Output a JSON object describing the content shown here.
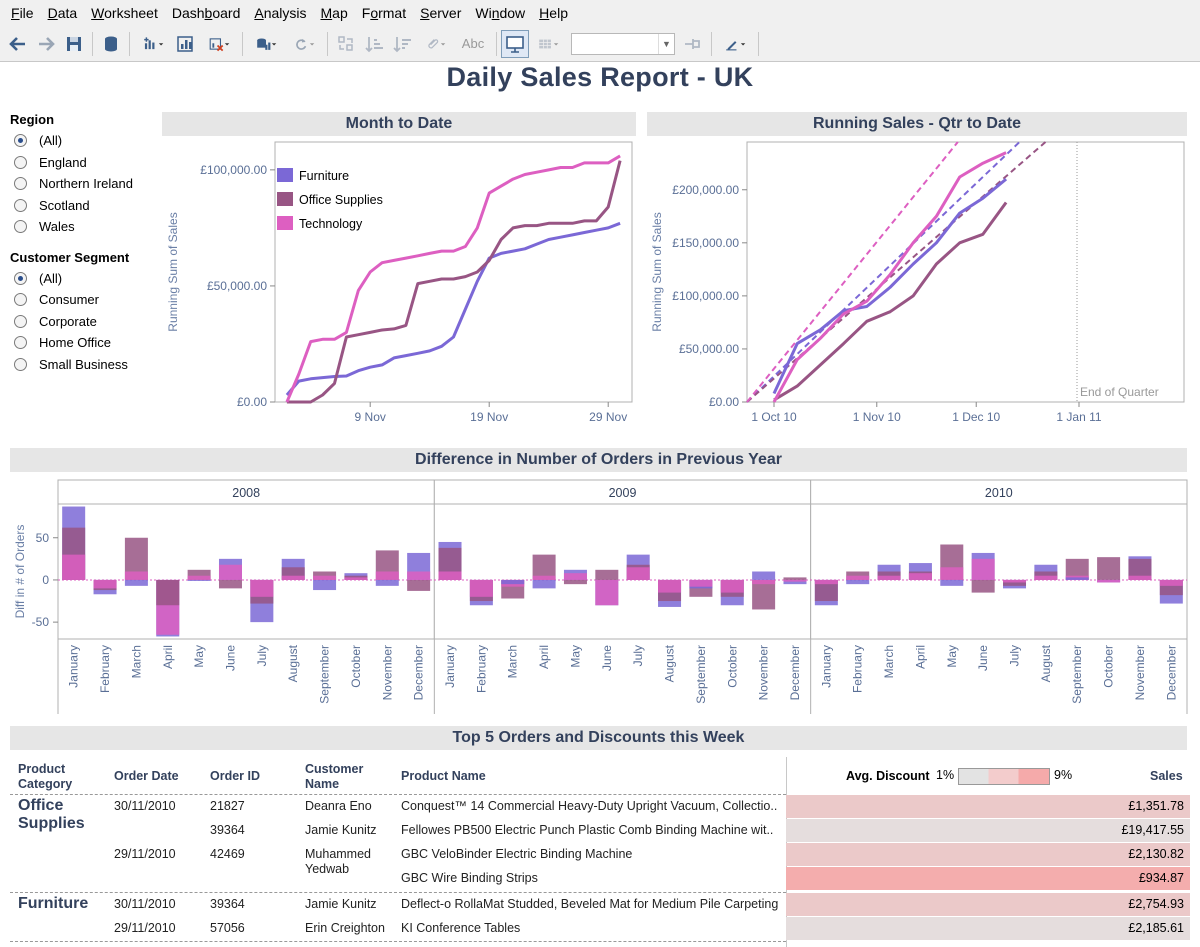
{
  "menu": [
    "File",
    "Data",
    "Worksheet",
    "Dashboard",
    "Analysis",
    "Map",
    "Format",
    "Server",
    "Window",
    "Help"
  ],
  "menu_underline": [
    "F",
    "D",
    "W",
    "b",
    "A",
    "M",
    "o",
    "S",
    "n",
    "H"
  ],
  "toolbar": {
    "icons": [
      "back-icon",
      "forward-icon",
      "save-icon",
      "datasource-icon",
      "new-worksheet-icon",
      "duplicate-icon",
      "clear-sheet-icon",
      "auto-update-icon",
      "refresh-icon",
      "swap-icon",
      "sort-ascending-icon",
      "sort-descending-icon",
      "group-icon",
      "show-labels-icon",
      "presentation-icon",
      "fit-icon",
      "fix-axes-icon",
      "highlight-icon"
    ],
    "labels_text": "Abc"
  },
  "title": "Daily Sales Report - UK",
  "filters": {
    "region": {
      "title": "Region",
      "options": [
        "(All)",
        "England",
        "Northern Ireland",
        "Scotland",
        "Wales"
      ],
      "selected": 0
    },
    "segment": {
      "title": "Customer Segment",
      "options": [
        "(All)",
        "Consumer",
        "Corporate",
        "Home Office",
        "Small Business"
      ],
      "selected": 0
    }
  },
  "colors": {
    "furniture": "#7b68d6",
    "office_supplies": "#985584",
    "technology": "#dd5fc1",
    "title": "#33415c",
    "header_bg": "#e6e6e6",
    "discount_low": "#e3e3e3",
    "discount_high": "#f5aaaa"
  },
  "chart_data": [
    {
      "type": "line",
      "title": "Month to Date",
      "ylabel": "Running Sum of Sales",
      "xlabel": "",
      "x_ticks": [
        "9 Nov",
        "19 Nov",
        "29 Nov"
      ],
      "y_ticks": [
        "£0.00",
        "£50,000.00",
        "£100,000.00"
      ],
      "ylim": [
        0,
        112000
      ],
      "legend": "top-left",
      "x": [
        2,
        3,
        4,
        5,
        6,
        7,
        8,
        9,
        10,
        11,
        12,
        13,
        14,
        15,
        16,
        17,
        18,
        19,
        20,
        21,
        22,
        23,
        24,
        25,
        26,
        27,
        28,
        29,
        30
      ],
      "series": [
        {
          "name": "Furniture",
          "values": [
            3000,
            9000,
            10000,
            10500,
            11000,
            11200,
            13500,
            15000,
            16000,
            19000,
            20000,
            21000,
            22000,
            24000,
            28000,
            40000,
            52000,
            62000,
            64000,
            65000,
            66000,
            68000,
            70000,
            71000,
            72000,
            73000,
            74000,
            75000,
            77000
          ]
        },
        {
          "name": "Office Supplies",
          "values": [
            0,
            0,
            0,
            3000,
            8000,
            28000,
            29000,
            30000,
            31000,
            31500,
            33000,
            51000,
            52000,
            53000,
            53000,
            54000,
            56000,
            61000,
            70000,
            75000,
            76000,
            76000,
            77000,
            77000,
            77000,
            78000,
            78000,
            84000,
            104000
          ]
        },
        {
          "name": "Technology",
          "values": [
            0,
            12000,
            26000,
            27000,
            27000,
            30000,
            48000,
            56000,
            60000,
            61000,
            62000,
            63000,
            64000,
            65000,
            65000,
            67000,
            75000,
            90000,
            93000,
            96000,
            98000,
            99000,
            100000,
            101000,
            101000,
            103000,
            103000,
            103000,
            106000
          ]
        }
      ]
    },
    {
      "type": "line",
      "title": "Running Sales - Qtr to Date",
      "ylabel": "Running Sum of Sales",
      "x_ticks": [
        "1 Oct 10",
        "1 Nov 10",
        "1 Dec 10",
        "1 Jan 11"
      ],
      "y_ticks": [
        "£0.00",
        "£50,000.00",
        "£100,000.00",
        "£150,000.00",
        "£200,000.00"
      ],
      "ylim": [
        0,
        245000
      ],
      "reference_line_label": "End of Quarter",
      "x_days": [
        0,
        7,
        14,
        21,
        28,
        35,
        42,
        49,
        56,
        63,
        70
      ],
      "series": [
        {
          "name": "Furniture",
          "values": [
            8000,
            55000,
            68000,
            86000,
            90000,
            108000,
            130000,
            150000,
            178000,
            192000,
            210000
          ]
        },
        {
          "name": "Office Supplies",
          "values": [
            2000,
            15000,
            35000,
            55000,
            76000,
            85000,
            100000,
            130000,
            150000,
            158000,
            188000
          ]
        },
        {
          "name": "Technology",
          "values": [
            0,
            40000,
            60000,
            83000,
            95000,
            120000,
            150000,
            175000,
            212000,
            225000,
            235000
          ]
        }
      ],
      "trend_lines": true
    },
    {
      "type": "bar",
      "title": "Difference in Number of Orders in Previous Year",
      "ylabel": "Diff in # of Orders",
      "y_ticks": [
        "-50",
        "0",
        "50"
      ],
      "ylim": [
        -70,
        90
      ],
      "panels": [
        "2008",
        "2009",
        "2010"
      ],
      "categories": [
        "January",
        "February",
        "March",
        "April",
        "May",
        "June",
        "July",
        "August",
        "September",
        "October",
        "November",
        "December"
      ],
      "series": [
        {
          "name": "Furniture",
          "values": [
            [
              87,
              -17,
              -7,
              -67,
              0,
              25,
              -50,
              25,
              -12,
              8,
              -7,
              32
            ],
            [
              45,
              -30,
              -5,
              -10,
              12,
              -30,
              30,
              -32,
              -10,
              -30,
              10,
              -5
            ],
            [
              -30,
              -5,
              18,
              20,
              -7,
              32,
              -10,
              18,
              3,
              -3,
              28,
              -28
            ]
          ]
        },
        {
          "name": "Office Supplies",
          "values": [
            [
              62,
              -12,
              50,
              -30,
              12,
              -10,
              -28,
              15,
              10,
              5,
              35,
              -13
            ],
            [
              38,
              -25,
              -22,
              30,
              -5,
              12,
              18,
              -25,
              -20,
              -20,
              -35,
              3
            ],
            [
              -25,
              10,
              10,
              10,
              42,
              -15,
              -7,
              10,
              25,
              27,
              25,
              -18
            ]
          ]
        },
        {
          "name": "Technology",
          "values": [
            [
              30,
              -10,
              10,
              -65,
              5,
              18,
              -20,
              5,
              5,
              3,
              10,
              10
            ],
            [
              10,
              -20,
              -8,
              5,
              8,
              -30,
              15,
              -15,
              -8,
              -15,
              -5,
              -2
            ],
            [
              -5,
              5,
              5,
              8,
              15,
              25,
              -3,
              5,
              5,
              -3,
              5,
              -7
            ]
          ]
        }
      ]
    }
  ],
  "table": {
    "title": "Top 5 Orders and Discounts this Week",
    "headers": {
      "category": "Product Category",
      "order_date": "Order Date",
      "order_id": "Order ID",
      "customer": "Customer Name",
      "product": "Product Name",
      "sales": "Sales"
    },
    "legend": {
      "label": "Avg. Discount",
      "min": "1%",
      "max": "9%"
    },
    "groups": [
      {
        "category": "Office Supplies",
        "rows": [
          {
            "date": "30/11/2010",
            "id": "21827",
            "customer": "Deanra Eno",
            "product": "Conquest™ 14 Commercial Heavy-Duty Upright Vacuum, Collectio..",
            "sales": "£1,351.78",
            "discount": 0.45
          },
          {
            "date": "",
            "id": "39364",
            "customer": "Jamie Kunitz",
            "product": "Fellowes PB500 Electric Punch Plastic Comb Binding Machine wit..",
            "sales": "£19,417.55",
            "discount": 0.1
          },
          {
            "date": "29/11/2010",
            "id": "42469",
            "customer": "Muhammed Yedwab",
            "product": "GBC VeloBinder Electric Binding Machine",
            "sales": "£2,130.82",
            "discount": 0.45
          },
          {
            "date": "",
            "id": "",
            "customer": "",
            "product": "GBC Wire Binding Strips",
            "sales": "£934.87",
            "discount": 0.95
          }
        ]
      },
      {
        "category": "Furniture",
        "rows": [
          {
            "date": "30/11/2010",
            "id": "39364",
            "customer": "Jamie Kunitz",
            "product": "Deflect-o RollaMat Studded, Beveled Mat for Medium Pile Carpeting",
            "sales": "£2,754.93",
            "discount": 0.45
          },
          {
            "date": "29/11/2010",
            "id": "57056",
            "customer": "Erin Creighton",
            "product": "KI Conference Tables",
            "sales": "£2,185.61",
            "discount": 0.1
          }
        ]
      }
    ]
  }
}
